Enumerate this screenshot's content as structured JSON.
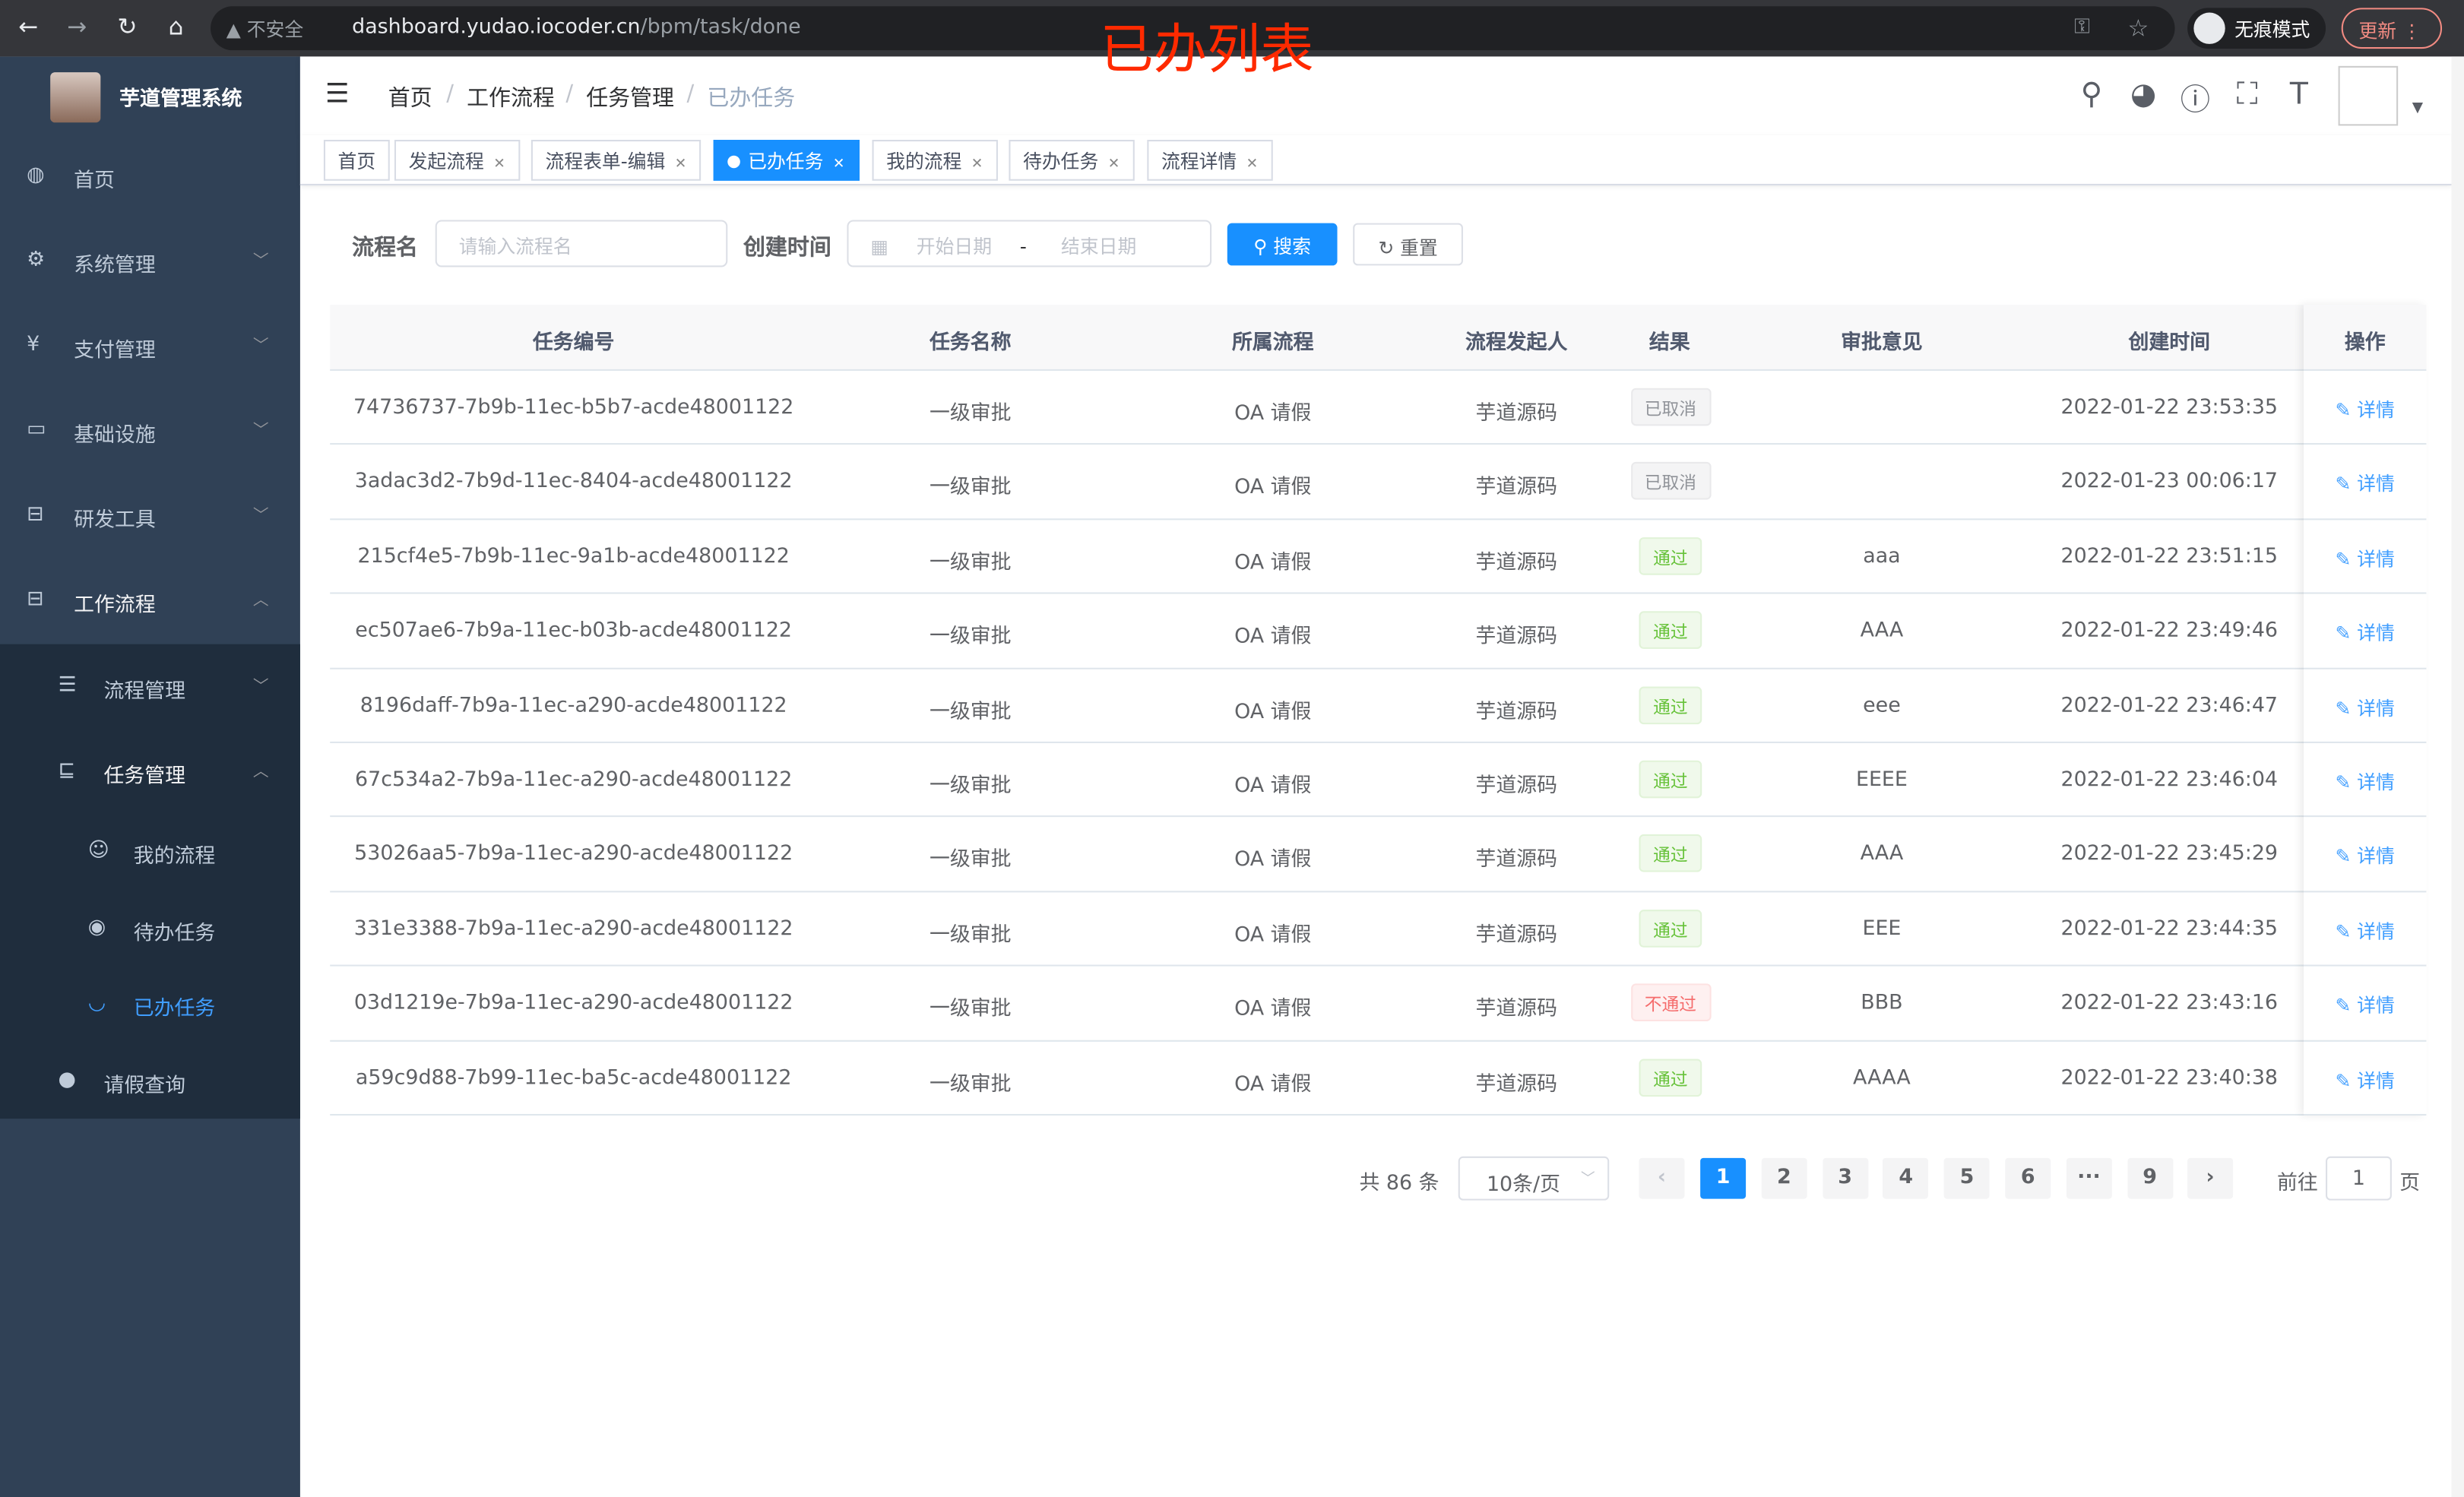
{
  "browser": {
    "security": "不安全",
    "url_host": "dashboard.yudao.iocoder.cn",
    "url_path": "/bpm/task/done",
    "incognito": "无痕模式",
    "update": "更新"
  },
  "annotation": "已办列表",
  "sidebar": {
    "title": "芋道管理系统",
    "items": [
      {
        "label": "首页",
        "icon": "dashboard-icon"
      },
      {
        "label": "系统管理",
        "icon": "gear-icon"
      },
      {
        "label": "支付管理",
        "icon": "yen-icon"
      },
      {
        "label": "基础设施",
        "icon": "monitor-icon"
      },
      {
        "label": "研发工具",
        "icon": "toolbox-icon"
      },
      {
        "label": "工作流程",
        "icon": "toolbox-icon"
      },
      {
        "label": "流程管理",
        "icon": "list-icon"
      },
      {
        "label": "任务管理",
        "icon": "tree-icon"
      },
      {
        "label": "我的流程",
        "icon": "people-icon"
      },
      {
        "label": "待办任务",
        "icon": "eye-icon"
      },
      {
        "label": "已办任务",
        "icon": "eye-closed-icon"
      },
      {
        "label": "请假查询",
        "icon": "user-icon"
      }
    ]
  },
  "breadcrumb": [
    "首页",
    "工作流程",
    "任务管理",
    "已办任务"
  ],
  "tags": [
    "首页",
    "发起流程",
    "流程表单-编辑",
    "已办任务",
    "我的流程",
    "待办任务",
    "流程详情"
  ],
  "active_tag": "已办任务",
  "filter": {
    "name_label": "流程名",
    "name_placeholder": "请输入流程名",
    "time_label": "创建时间",
    "start_placeholder": "开始日期",
    "range_sep": "-",
    "end_placeholder": "结束日期",
    "search": "搜索",
    "reset": "重置"
  },
  "table": {
    "headers": [
      "任务编号",
      "任务名称",
      "所属流程",
      "流程发起人",
      "结果",
      "审批意见",
      "创建时间",
      "操作"
    ],
    "rows": [
      {
        "id": "74736737-7b9b-11ec-b5b7-acde48001122",
        "name": "一级审批",
        "process": "OA 请假",
        "starter": "芋道源码",
        "result": "已取消",
        "status": "cancel",
        "comment": "",
        "time": "2022-01-22 23:53:35",
        "op": "详情"
      },
      {
        "id": "3adac3d2-7b9d-11ec-8404-acde48001122",
        "name": "一级审批",
        "process": "OA 请假",
        "starter": "芋道源码",
        "result": "已取消",
        "status": "cancel",
        "comment": "",
        "time": "2022-01-23 00:06:17",
        "op": "详情"
      },
      {
        "id": "215cf4e5-7b9b-11ec-9a1b-acde48001122",
        "name": "一级审批",
        "process": "OA 请假",
        "starter": "芋道源码",
        "result": "通过",
        "status": "pass",
        "comment": "aaa",
        "time": "2022-01-22 23:51:15",
        "op": "详情"
      },
      {
        "id": "ec507ae6-7b9a-11ec-b03b-acde48001122",
        "name": "一级审批",
        "process": "OA 请假",
        "starter": "芋道源码",
        "result": "通过",
        "status": "pass",
        "comment": "AAA",
        "time": "2022-01-22 23:49:46",
        "op": "详情"
      },
      {
        "id": "8196daff-7b9a-11ec-a290-acde48001122",
        "name": "一级审批",
        "process": "OA 请假",
        "starter": "芋道源码",
        "result": "通过",
        "status": "pass",
        "comment": "eee",
        "time": "2022-01-22 23:46:47",
        "op": "详情"
      },
      {
        "id": "67c534a2-7b9a-11ec-a290-acde48001122",
        "name": "一级审批",
        "process": "OA 请假",
        "starter": "芋道源码",
        "result": "通过",
        "status": "pass",
        "comment": "EEEE",
        "time": "2022-01-22 23:46:04",
        "op": "详情"
      },
      {
        "id": "53026aa5-7b9a-11ec-a290-acde48001122",
        "name": "一级审批",
        "process": "OA 请假",
        "starter": "芋道源码",
        "result": "通过",
        "status": "pass",
        "comment": "AAA",
        "time": "2022-01-22 23:45:29",
        "op": "详情"
      },
      {
        "id": "331e3388-7b9a-11ec-a290-acde48001122",
        "name": "一级审批",
        "process": "OA 请假",
        "starter": "芋道源码",
        "result": "通过",
        "status": "pass",
        "comment": "EEE",
        "time": "2022-01-22 23:44:35",
        "op": "详情"
      },
      {
        "id": "03d1219e-7b9a-11ec-a290-acde48001122",
        "name": "一级审批",
        "process": "OA 请假",
        "starter": "芋道源码",
        "result": "不通过",
        "status": "fail",
        "comment": "BBB",
        "time": "2022-01-22 23:43:16",
        "op": "详情"
      },
      {
        "id": "a59c9d88-7b99-11ec-ba5c-acde48001122",
        "name": "一级审批",
        "process": "OA 请假",
        "starter": "芋道源码",
        "result": "通过",
        "status": "pass",
        "comment": "AAAA",
        "time": "2022-01-22 23:40:38",
        "op": "详情"
      }
    ]
  },
  "pagination": {
    "total": "共 86 条",
    "page_size": "10条/页",
    "pages": [
      "1",
      "2",
      "3",
      "4",
      "5",
      "6",
      "···",
      "9"
    ],
    "current": "1",
    "goto_label": "前往",
    "goto_value": "1",
    "goto_suffix": "页"
  },
  "colors": {
    "primary": "#1890ff",
    "sidebar": "#304156",
    "submenu": "#1f2d3d",
    "annotation": "#ff2a00"
  }
}
